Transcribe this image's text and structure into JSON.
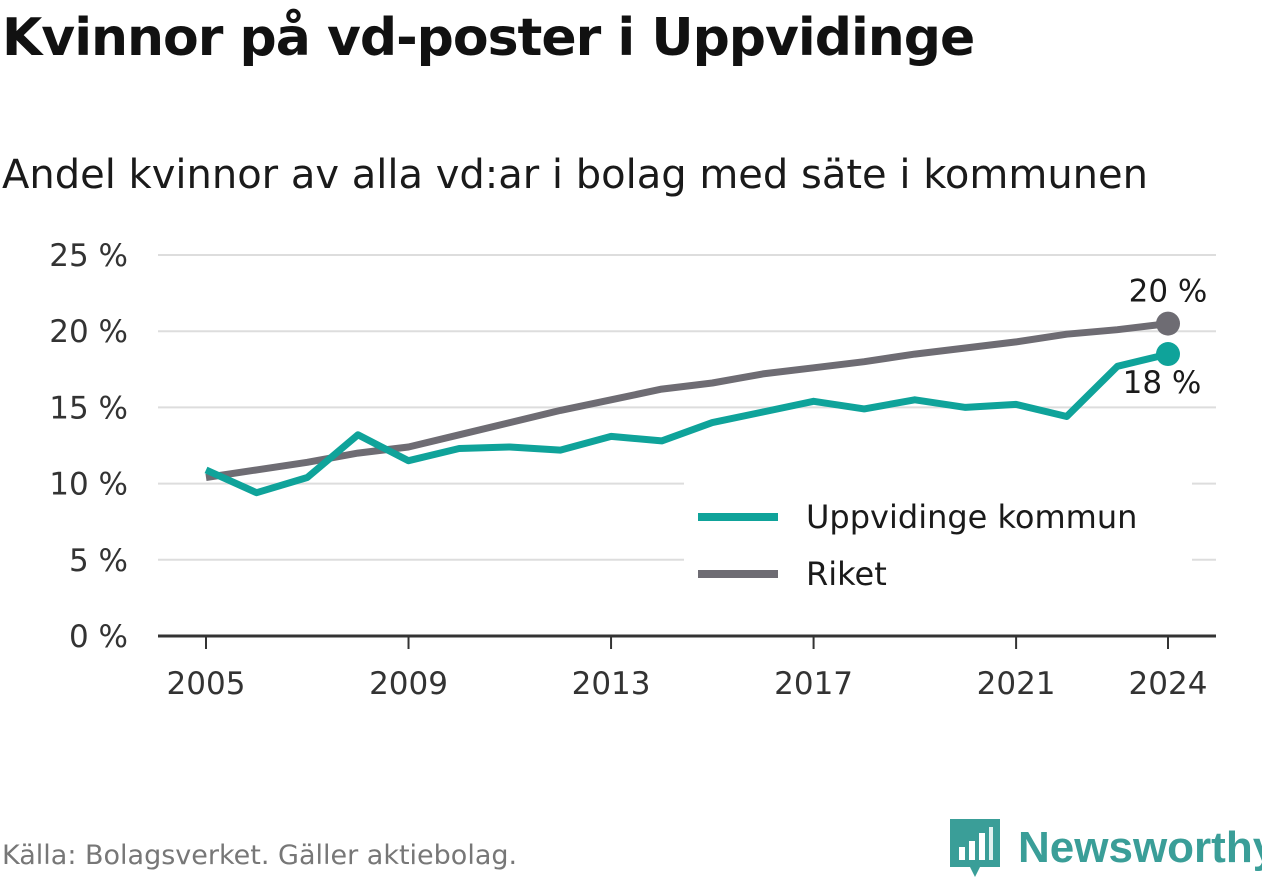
{
  "header": {
    "title": "Kvinnor på vd-poster i Uppvidinge",
    "subtitle": "Andel kvinnor av alla vd:ar i bolag med säte i kommunen"
  },
  "footer": {
    "source": "Källa: Bolagsverket. Gäller aktiebolag.",
    "brand": "Newsworthy",
    "brand_icon": "bar-chart-icon"
  },
  "colors": {
    "uppvidinge": "#0fa39a",
    "riket": "#6e6c73",
    "grid": "#dddddd",
    "axis": "#333333",
    "brand": "#3a9e98"
  },
  "chart_data": {
    "type": "line",
    "title": "Kvinnor på vd-poster i Uppvidinge",
    "subtitle": "Andel kvinnor av alla vd:ar i bolag med säte i kommunen",
    "xlabel": "",
    "ylabel": "",
    "x": [
      2005,
      2006,
      2007,
      2008,
      2009,
      2010,
      2011,
      2012,
      2013,
      2014,
      2015,
      2016,
      2017,
      2018,
      2019,
      2020,
      2021,
      2022,
      2023,
      2024
    ],
    "x_ticks": [
      2005,
      2009,
      2013,
      2017,
      2021,
      2024
    ],
    "y_ticks": [
      0,
      5,
      10,
      15,
      20,
      25
    ],
    "y_tick_labels": [
      "0 %",
      "5 %",
      "10 %",
      "15 %",
      "20 %",
      "25 %"
    ],
    "ylim": [
      0,
      25
    ],
    "grid": "horizontal",
    "legend_position": "bottom-right",
    "series": [
      {
        "name": "Uppvidinge kommun",
        "color": "#0fa39a",
        "end_label": "18 %",
        "values": [
          10.9,
          9.4,
          10.4,
          13.2,
          11.5,
          12.3,
          12.4,
          12.2,
          13.1,
          12.8,
          14.0,
          14.7,
          15.4,
          14.9,
          15.5,
          15.0,
          15.2,
          14.4,
          17.7,
          18.5
        ]
      },
      {
        "name": "Riket",
        "color": "#6e6c73",
        "end_label": "20 %",
        "values": [
          10.4,
          10.9,
          11.4,
          12.0,
          12.4,
          13.2,
          14.0,
          14.8,
          15.5,
          16.2,
          16.6,
          17.2,
          17.6,
          18.0,
          18.5,
          18.9,
          19.3,
          19.8,
          20.1,
          20.5
        ]
      }
    ]
  }
}
